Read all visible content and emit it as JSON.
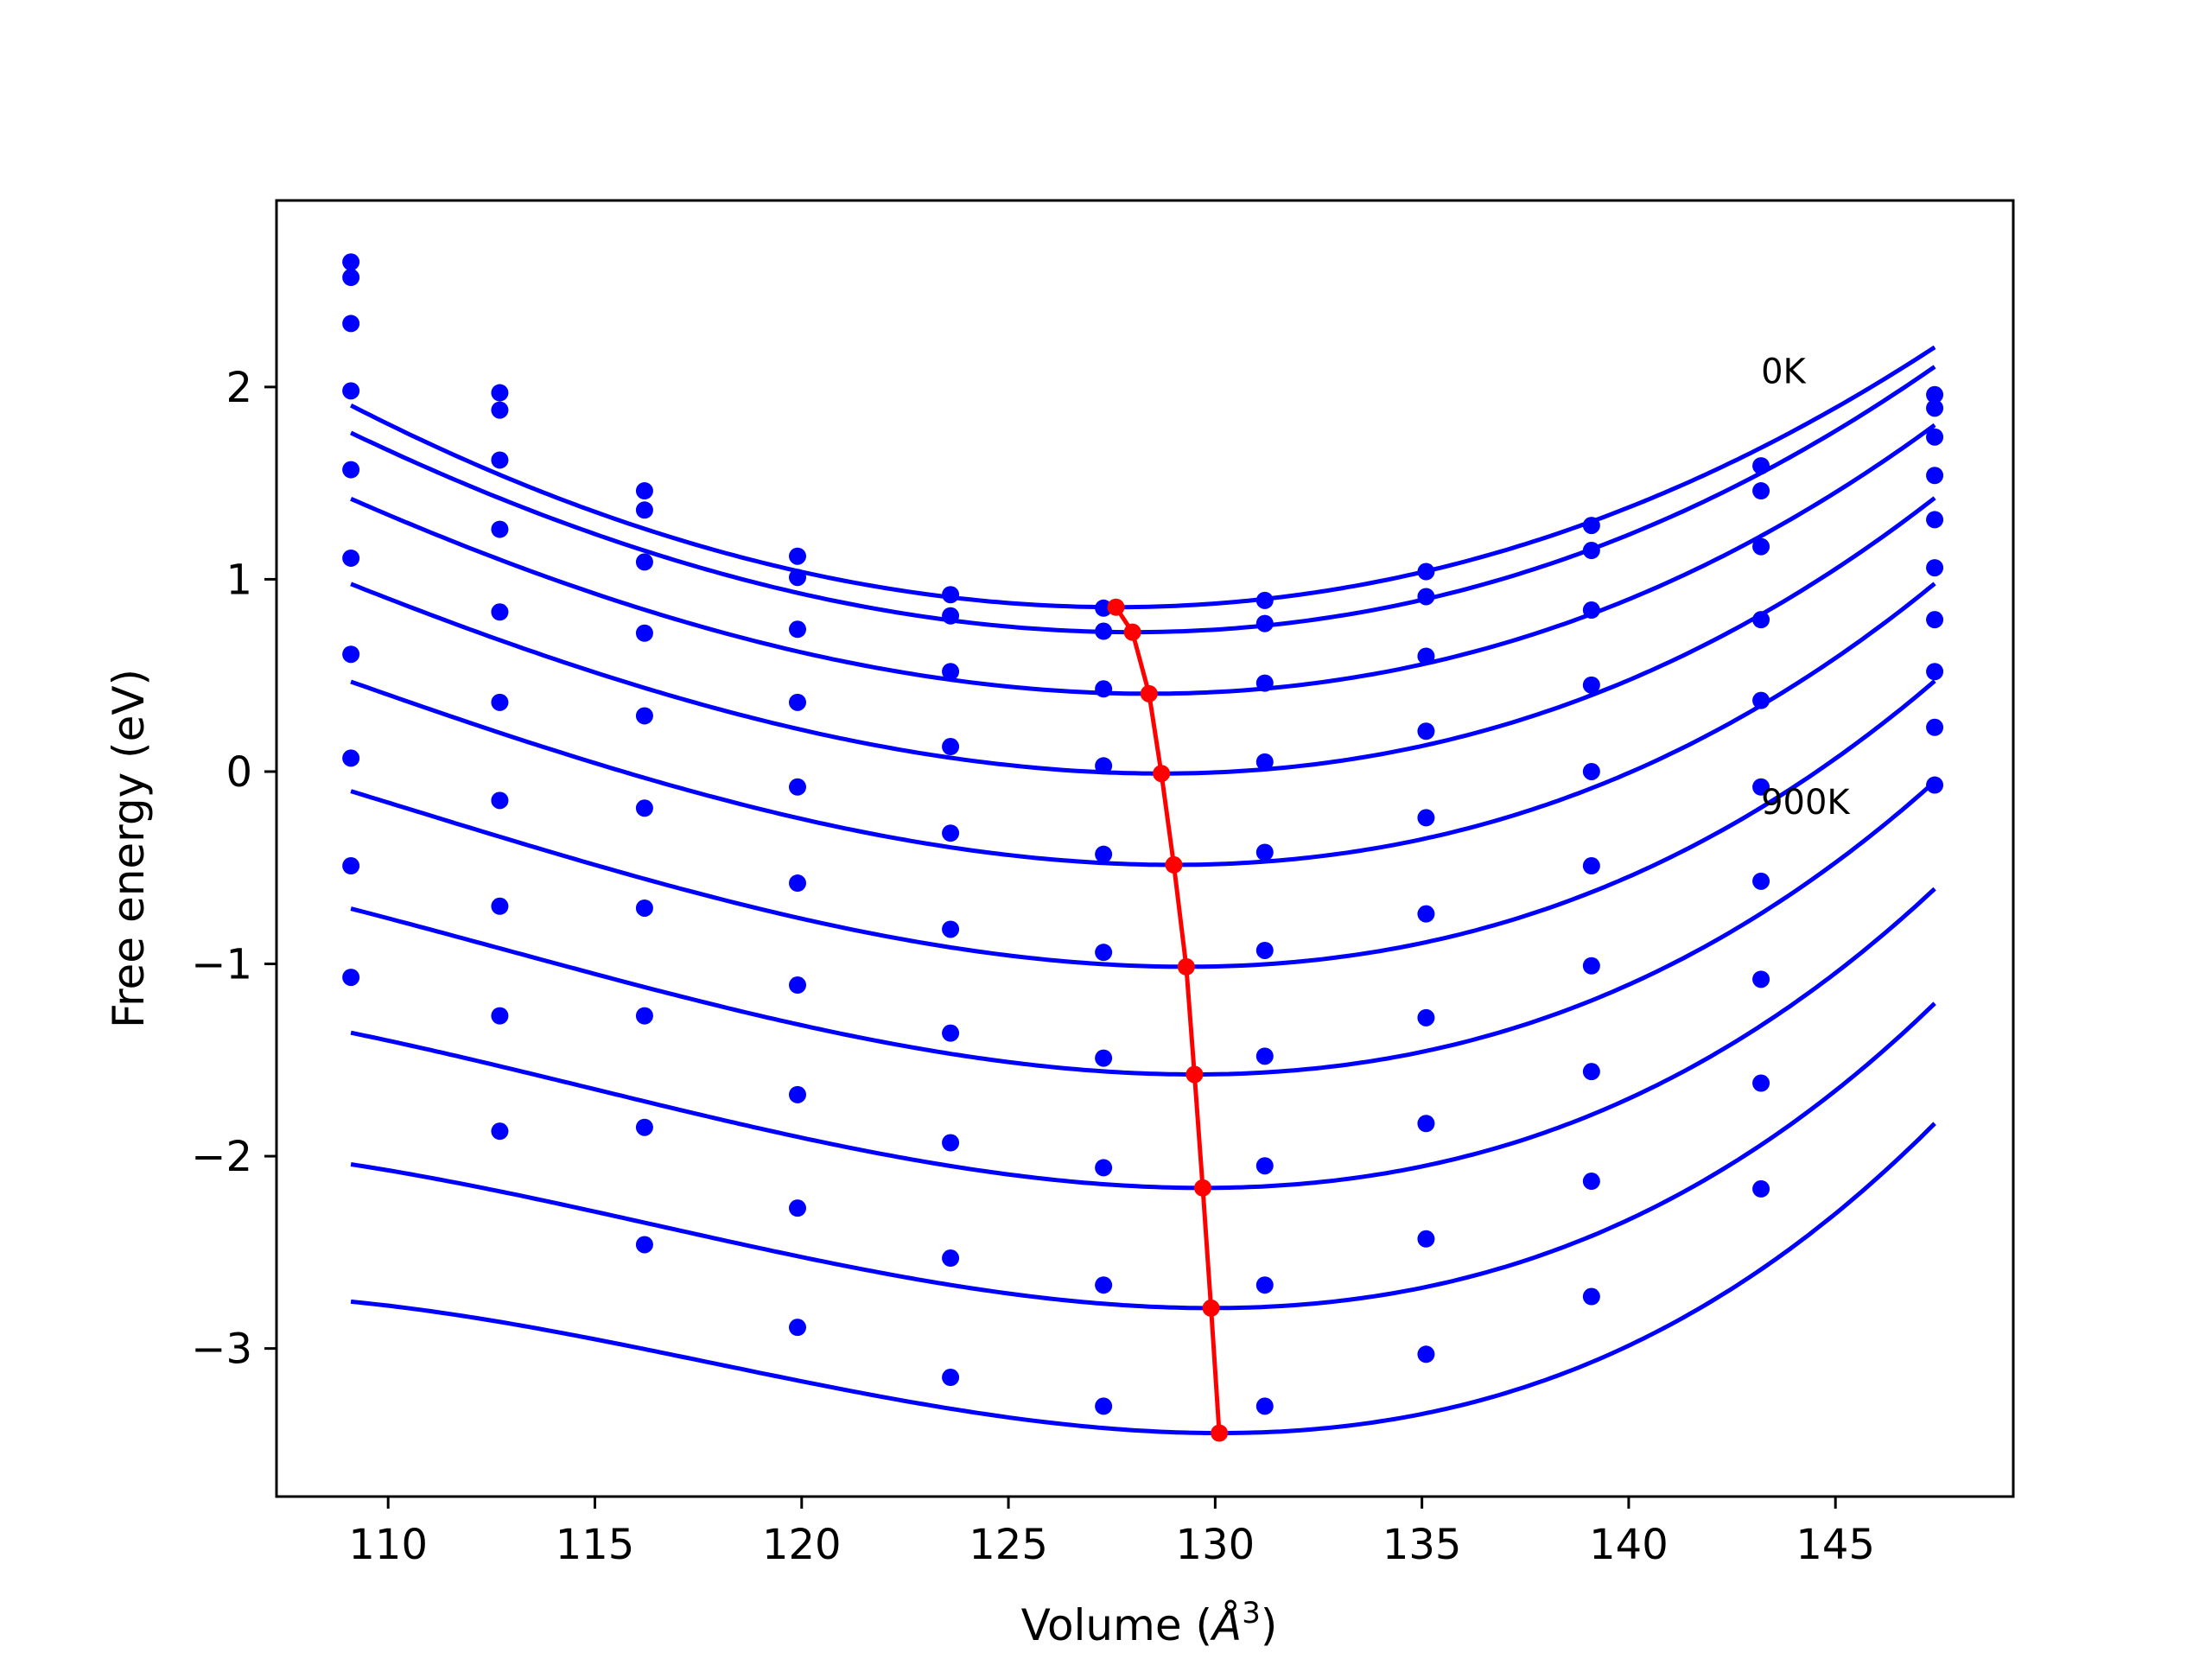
{
  "chart_data": {
    "type": "line",
    "xlabel_main": "Volume (",
    "xlabel_unit": "Å",
    "xlabel_exp": "3",
    "xlabel_end": ")",
    "ylabel": "Free energy (eV)",
    "xlim": [
      107.3,
      149.3
    ],
    "ylim": [
      -3.77,
      2.97
    ],
    "xticks": [
      110,
      115,
      120,
      125,
      130,
      135,
      140,
      145
    ],
    "xtick_labels": [
      "110",
      "115",
      "120",
      "125",
      "130",
      "135",
      "140",
      "145"
    ],
    "yticks": [
      -3,
      -2,
      -1,
      0,
      1,
      2
    ],
    "ytick_labels": [
      "−3",
      "−2",
      "−1",
      "0",
      "1",
      "2"
    ],
    "annotations": [
      {
        "text": "0K",
        "x": 143.2,
        "y": 2.02
      },
      {
        "text": "900K",
        "x": 143.2,
        "y": -0.22
      }
    ],
    "colors": {
      "series": "#0000ff",
      "equilibrium": "#ff0000"
    },
    "volumes": [
      109.1,
      112.7,
      116.2,
      119.9,
      123.6,
      127.3,
      131.2,
      135.1,
      139.1,
      143.2,
      147.4
    ],
    "series": [
      {
        "points": [
          2.65,
          1.97,
          1.46,
          1.12,
          0.92,
          0.85,
          0.89,
          1.04,
          1.28,
          1.59,
          1.96
        ],
        "fit": {
          "v0": 127.6,
          "e0": 0.855,
          "a": 0.00325,
          "b": 1e-05
        }
      },
      {
        "points": [
          2.57,
          1.88,
          1.36,
          1.01,
          0.81,
          0.73,
          0.77,
          0.91,
          1.15,
          1.46,
          1.89
        ],
        "fit": {
          "v0": 128.0,
          "e0": 0.725,
          "a": 0.00328,
          "b": 2e-05
        }
      },
      {
        "points": [
          2.33,
          1.62,
          1.09,
          0.74,
          0.52,
          0.43,
          0.46,
          0.6,
          0.84,
          1.17,
          1.74
        ],
        "fit": {
          "v0": 128.4,
          "e0": 0.405,
          "a": 0.0033,
          "b": 3e-05
        }
      },
      {
        "points": [
          1.98,
          1.26,
          0.72,
          0.36,
          0.13,
          0.03,
          0.05,
          0.21,
          0.45,
          0.79,
          1.54
        ],
        "fit": {
          "v0": 128.7,
          "e0": -0.01,
          "a": 0.00335,
          "b": 4e-05
        }
      },
      {
        "points": [
          1.57,
          0.83,
          0.29,
          -0.08,
          -0.32,
          -0.43,
          -0.42,
          -0.24,
          0.0,
          0.37,
          1.31
        ],
        "fit": {
          "v0": 129.0,
          "e0": -0.485,
          "a": 0.0034,
          "b": 5e-05
        }
      },
      {
        "points": [
          1.11,
          0.36,
          -0.19,
          -0.58,
          -0.82,
          -0.94,
          -0.93,
          -0.74,
          -0.49,
          -0.08,
          1.06
        ],
        "fit": {
          "v0": 129.3,
          "e0": -1.015,
          "a": 0.00345,
          "b": 6e-05
        }
      },
      {
        "points": [
          0.61,
          -0.15,
          -0.71,
          -1.11,
          -1.36,
          -1.49,
          -1.48,
          -1.28,
          -1.01,
          -0.57,
          0.79
        ],
        "fit": {
          "v0": 129.5,
          "e0": -1.575,
          "a": 0.0035,
          "b": 7e-05
        }
      },
      {
        "points": [
          0.07,
          -0.7,
          -1.27,
          -1.68,
          -1.93,
          -2.06,
          -2.05,
          -1.83,
          -1.56,
          -1.08,
          0.52
        ],
        "fit": {
          "v0": 129.7,
          "e0": -2.165,
          "a": 0.00355,
          "b": 8e-05
        }
      },
      {
        "points": [
          -0.49,
          -1.27,
          -1.85,
          -2.27,
          -2.53,
          -2.67,
          -2.67,
          -2.43,
          -2.13,
          -1.62,
          0.23
        ],
        "fit": {
          "v0": 129.9,
          "e0": -2.79,
          "a": 0.0036,
          "b": 9e-05
        }
      },
      {
        "points": [
          -1.07,
          -1.87,
          -2.46,
          -2.89,
          -3.15,
          -3.3,
          -3.3,
          -3.03,
          -2.73,
          -2.17,
          -0.07
        ],
        "fit": {
          "v0": 130.1,
          "e0": -3.44,
          "a": 0.00365,
          "b": 0.0001
        }
      }
    ],
    "equilibrium": {
      "x": [
        127.6,
        128.0,
        128.4,
        128.7,
        129.0,
        129.3,
        129.5,
        129.7,
        129.9,
        130.1
      ],
      "y": [
        0.855,
        0.725,
        0.405,
        -0.01,
        -0.485,
        -1.015,
        -1.575,
        -2.165,
        -2.79,
        -3.44
      ]
    },
    "grid": false,
    "legend": "none"
  }
}
